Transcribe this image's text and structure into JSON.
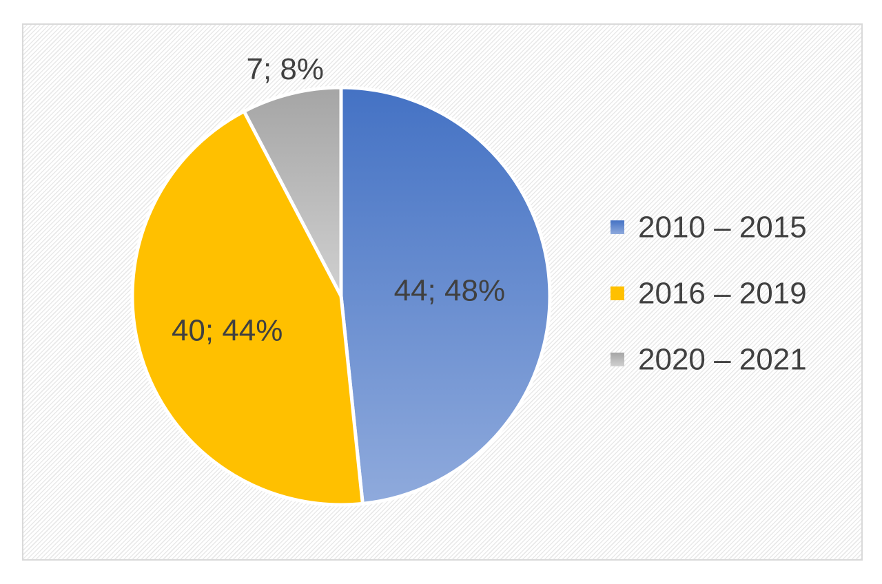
{
  "chart_data": {
    "type": "pie",
    "categories": [
      "2010 – 2015",
      "2016 – 2019",
      "2020 – 2021"
    ],
    "values": [
      44,
      40,
      7
    ],
    "percentages": [
      48,
      44,
      8
    ],
    "data_labels": [
      "44; 48%",
      "40; 44%",
      "7; 8%"
    ],
    "colors": [
      "#4472c4",
      "#ffc000",
      "#a5a5a5"
    ],
    "legend_position": "right",
    "start_angle": "top, clockwise"
  }
}
